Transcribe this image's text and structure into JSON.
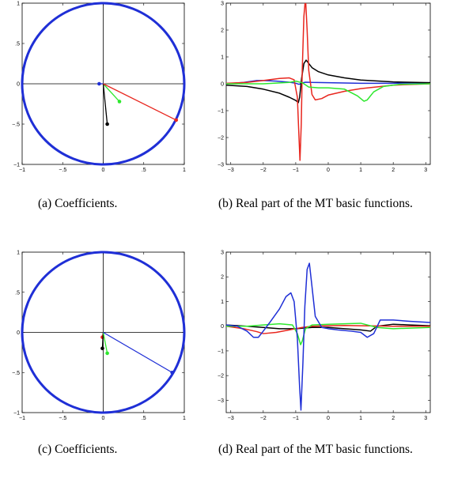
{
  "captions": {
    "a": "(a)  Coefficients.",
    "b": "(b)  Real part of the MT basic functions.",
    "c": "(c)  Coefficients.",
    "d": "(d)  Real part of the MT basic functions."
  },
  "colors": {
    "blue": "#1f2fd6",
    "red": "#e8261e",
    "green": "#2ee82e",
    "black": "#000000"
  },
  "chart_data": [
    {
      "id": "a",
      "type": "scatter",
      "title": "",
      "xlabel": "",
      "ylabel": "",
      "xlim": [
        -1,
        1
      ],
      "ylim": [
        -1,
        1
      ],
      "xticks": [
        -1,
        -0.5,
        0,
        0.5,
        1
      ],
      "yticks": [
        -1,
        -0.5,
        0,
        0.5,
        1
      ],
      "unit_circle": true,
      "points": [
        {
          "color": "blue",
          "x": -0.05,
          "y": 0.0
        },
        {
          "color": "green",
          "x": 0.2,
          "y": -0.22
        },
        {
          "color": "black",
          "x": 0.05,
          "y": -0.5
        },
        {
          "color": "red",
          "x": 0.9,
          "y": -0.45
        }
      ]
    },
    {
      "id": "b",
      "type": "line",
      "title": "",
      "xlabel": "",
      "ylabel": "",
      "xlim": [
        -3.14,
        3.14
      ],
      "ylim": [
        -3,
        3
      ],
      "xticks": [
        -3,
        -2,
        -1,
        0,
        1,
        2,
        3
      ],
      "yticks": [
        -3,
        -2,
        -1,
        0,
        1,
        2,
        3
      ],
      "series": [
        {
          "color": "blue",
          "x": [
            -3.14,
            -2.6,
            -2.2,
            -2.0,
            -1.6,
            -1.2,
            -1.0,
            -0.9,
            -0.8,
            -0.7,
            -0.5,
            0,
            0.5,
            1.0,
            1.5,
            2.0,
            2.5,
            3.14
          ],
          "y": [
            0.0,
            0.05,
            0.12,
            0.12,
            0.1,
            0.06,
            0.02,
            -0.02,
            0.03,
            0.06,
            0.05,
            0.04,
            0.03,
            0.02,
            0.02,
            0.02,
            0.03,
            0.04
          ]
        },
        {
          "color": "black",
          "x": [
            -3.14,
            -2.5,
            -2.0,
            -1.5,
            -1.2,
            -1.0,
            -0.92,
            -0.88,
            -0.82,
            -0.75,
            -0.68,
            -0.5,
            -0.3,
            0,
            0.5,
            1.0,
            2.0,
            3.14
          ],
          "y": [
            -0.05,
            -0.1,
            -0.2,
            -0.35,
            -0.5,
            -0.62,
            -0.7,
            -0.5,
            0.2,
            0.75,
            0.88,
            0.6,
            0.45,
            0.33,
            0.22,
            0.14,
            0.07,
            0.04
          ]
        },
        {
          "color": "red",
          "x": [
            -3.14,
            -2.5,
            -2.0,
            -1.5,
            -1.2,
            -1.05,
            -0.95,
            -0.9,
            -0.87,
            -0.83,
            -0.8,
            -0.75,
            -0.7,
            -0.65,
            -0.6,
            -0.5,
            -0.4,
            -0.2,
            0,
            0.5,
            1.0,
            2.0,
            3.14
          ],
          "y": [
            0.02,
            0.05,
            0.12,
            0.2,
            0.22,
            0.15,
            -0.5,
            -2.0,
            -2.85,
            -1.5,
            0.5,
            2.5,
            3.2,
            2.0,
            0.5,
            -0.4,
            -0.6,
            -0.55,
            -0.42,
            -0.28,
            -0.18,
            -0.05,
            0.0
          ]
        },
        {
          "color": "green",
          "x": [
            -3.14,
            -2.0,
            -1.2,
            -1.0,
            -0.8,
            -0.6,
            -0.3,
            0,
            0.5,
            0.9,
            1.1,
            1.2,
            1.4,
            1.7,
            2.2,
            3.14
          ],
          "y": [
            0.0,
            0.0,
            0.05,
            0.1,
            0.04,
            -0.12,
            -0.15,
            -0.15,
            -0.2,
            -0.45,
            -0.65,
            -0.6,
            -0.3,
            -0.1,
            -0.02,
            0.0
          ]
        }
      ]
    },
    {
      "id": "c",
      "type": "scatter",
      "title": "",
      "xlabel": "",
      "ylabel": "",
      "xlim": [
        -1,
        1
      ],
      "ylim": [
        -1,
        1
      ],
      "xticks": [
        -1,
        -0.5,
        0,
        0.5,
        1
      ],
      "yticks": [
        -1,
        -0.5,
        0,
        0.5,
        1
      ],
      "unit_circle": true,
      "points": [
        {
          "color": "red",
          "x": -0.01,
          "y": -0.06
        },
        {
          "color": "black",
          "x": -0.01,
          "y": -0.2
        },
        {
          "color": "green",
          "x": 0.05,
          "y": -0.26
        },
        {
          "color": "blue",
          "x": 0.85,
          "y": -0.5
        }
      ]
    },
    {
      "id": "d",
      "type": "line",
      "title": "",
      "xlabel": "",
      "ylabel": "",
      "xlim": [
        -3.14,
        3.14
      ],
      "ylim": [
        -3.5,
        3
      ],
      "xticks": [
        -3,
        -2,
        -1,
        0,
        1,
        2,
        3
      ],
      "yticks": [
        -3,
        -2,
        -1,
        0,
        1,
        2,
        3
      ],
      "series": [
        {
          "color": "black",
          "x": [
            -3.14,
            -2.5,
            -2.0,
            -1.5,
            -1.0,
            -0.5,
            0,
            0.5,
            1.0,
            1.3,
            1.5,
            2.0,
            2.5,
            3.14
          ],
          "y": [
            0.05,
            0.0,
            -0.05,
            -0.1,
            -0.1,
            -0.05,
            -0.05,
            -0.1,
            -0.15,
            -0.2,
            0.0,
            0.08,
            0.05,
            0.02
          ]
        },
        {
          "color": "red",
          "x": [
            -3.14,
            -2.6,
            -2.2,
            -2.0,
            -1.6,
            -1.2,
            -1.0,
            -0.8,
            -0.5,
            0,
            0.5,
            1.0,
            1.5,
            2.0,
            3.14
          ],
          "y": [
            0.0,
            -0.1,
            -0.22,
            -0.3,
            -0.25,
            -0.15,
            -0.1,
            -0.05,
            0.0,
            0.02,
            0.03,
            0.02,
            0.01,
            0.0,
            0.0
          ]
        },
        {
          "color": "green",
          "x": [
            -3.14,
            -2.5,
            -2.0,
            -1.5,
            -1.1,
            -0.95,
            -0.85,
            -0.8,
            -0.7,
            -0.5,
            0,
            0.5,
            1.0,
            1.5,
            2.0,
            3.14
          ],
          "y": [
            0.0,
            0.0,
            0.05,
            0.1,
            0.05,
            -0.3,
            -0.75,
            -0.6,
            -0.1,
            0.05,
            0.08,
            0.1,
            0.12,
            -0.05,
            -0.1,
            -0.05
          ]
        },
        {
          "color": "blue",
          "x": [
            -3.14,
            -2.8,
            -2.5,
            -2.3,
            -2.15,
            -2.0,
            -1.8,
            -1.5,
            -1.3,
            -1.15,
            -1.05,
            -0.95,
            -0.88,
            -0.84,
            -0.78,
            -0.72,
            -0.65,
            -0.58,
            -0.5,
            -0.4,
            -0.2,
            0,
            0.3,
            0.7,
            1.0,
            1.2,
            1.4,
            1.6,
            2.0,
            2.5,
            3.14
          ],
          "y": [
            0.05,
            0.0,
            -0.2,
            -0.45,
            -0.45,
            -0.2,
            0.15,
            0.7,
            1.2,
            1.35,
            1.0,
            -0.5,
            -2.5,
            -3.4,
            -1.5,
            0.8,
            2.3,
            2.55,
            1.6,
            0.4,
            -0.05,
            -0.1,
            -0.15,
            -0.2,
            -0.25,
            -0.45,
            -0.3,
            0.25,
            0.25,
            0.2,
            0.15
          ]
        }
      ]
    }
  ]
}
